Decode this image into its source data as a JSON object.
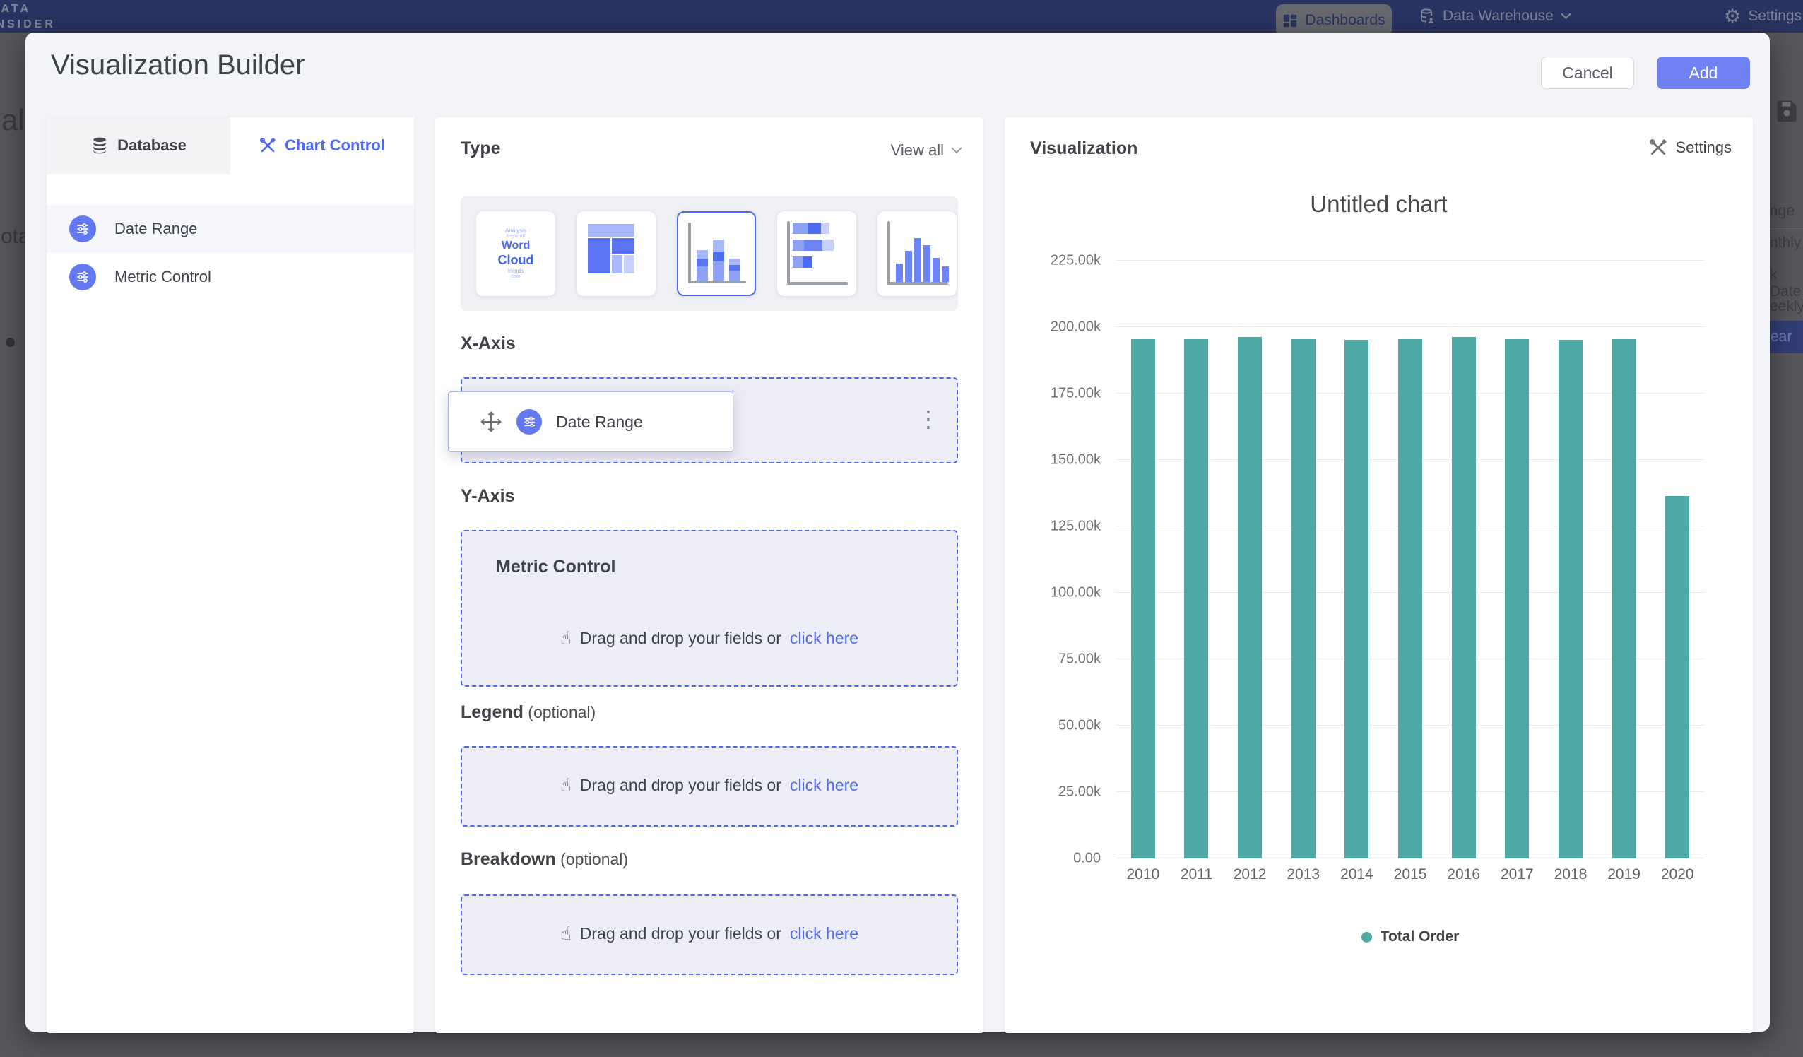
{
  "topbar": {
    "logo_line1": "DATA",
    "logo_line2": "INSIDER",
    "nav": [
      {
        "label": "Dashboards"
      },
      {
        "label": "Data Warehouse"
      },
      {
        "label": "Settings"
      }
    ]
  },
  "modal": {
    "title": "Visualization Builder",
    "cancel_label": "Cancel",
    "add_label": "Add"
  },
  "sidebar": {
    "tabs": [
      {
        "label": "Database"
      },
      {
        "label": "Chart Control"
      }
    ],
    "fields": [
      {
        "label": "Date Range"
      },
      {
        "label": "Metric Control"
      }
    ]
  },
  "builder": {
    "type_section": {
      "title": "Type",
      "view_all": "View all",
      "types": [
        "word-cloud",
        "treemap",
        "stacked-column",
        "stacked-bar",
        "histogram"
      ],
      "selected_index": 2,
      "word_cloud": {
        "small1": "Analysis",
        "small2": "Keyword",
        "big1": "Word",
        "big2": "Cloud",
        "small3": "trends",
        "small4": "data"
      }
    },
    "x_axis": {
      "title": "X-Axis",
      "chip_label": "Date Range",
      "ghost_label": "Date Range"
    },
    "y_axis": {
      "title": "Y-Axis",
      "box_title": "Metric Control",
      "drop_text": "Drag and drop your fields or",
      "drop_link": "click here"
    },
    "legend": {
      "title": "Legend",
      "optional": " (optional)",
      "drop_text": "Drag and drop your fields or",
      "drop_link": "click here"
    },
    "breakdown": {
      "title": "Breakdown",
      "optional": " (optional)",
      "drop_text": "Drag and drop your fields or",
      "drop_link": "click here"
    }
  },
  "visualization": {
    "title": "Visualization",
    "settings_label": "Settings"
  },
  "chart_data": {
    "type": "bar",
    "title": "Untitled chart",
    "categories": [
      "2010",
      "2011",
      "2012",
      "2013",
      "2014",
      "2015",
      "2016",
      "2017",
      "2018",
      "2019",
      "2020"
    ],
    "series": [
      {
        "name": "Total Order",
        "values": [
          195400,
          195400,
          196300,
          195400,
          195300,
          195400,
          196300,
          195500,
          195300,
          195600,
          136400
        ]
      }
    ],
    "ylim": [
      0,
      225000
    ],
    "yticks": [
      {
        "label": "0.00",
        "value": 0
      },
      {
        "label": "25.00k",
        "value": 25000
      },
      {
        "label": "50.00k",
        "value": 50000
      },
      {
        "label": "75.00k",
        "value": 75000
      },
      {
        "label": "100.00k",
        "value": 100000
      },
      {
        "label": "125.00k",
        "value": 125000
      },
      {
        "label": "150.00k",
        "value": 150000
      },
      {
        "label": "175.00k",
        "value": 175000
      },
      {
        "label": "200.00k",
        "value": 200000
      },
      {
        "label": "225.00k",
        "value": 225000
      }
    ],
    "bar_color": "#4da9a5",
    "grid": "horizontal",
    "legend_position": "bottom",
    "xlabel": "",
    "ylabel": ""
  },
  "background": {
    "left_fragments": [
      "al",
      "ota"
    ],
    "right_fragments": [
      "nge",
      "nthly",
      "k Date",
      "eekly",
      "ear"
    ]
  },
  "icons": {
    "gear": "⚙",
    "kebab": "⋮",
    "pointer": "☝"
  },
  "colors": {
    "accent_blue": "#4d6af2",
    "add_button": "#6e82f3",
    "bar_teal": "#4da9a5",
    "nav_bg": "#2a3462",
    "dim_overlay": "#56575c"
  }
}
